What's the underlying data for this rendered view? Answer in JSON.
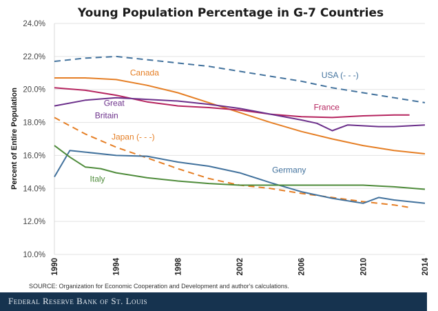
{
  "chart_data": {
    "type": "line",
    "title": "Young Population Percentage in G-7 Countries",
    "xlabel": "",
    "ylabel": "Percent of Entire Population",
    "xlim": [
      1990,
      2014
    ],
    "ylim": [
      10,
      24
    ],
    "x_ticks": [
      "1990",
      "1994",
      "1998",
      "2002",
      "2006",
      "2010",
      "2014"
    ],
    "x_tick_values": [
      1990,
      1994,
      1998,
      2002,
      2006,
      2010,
      2014
    ],
    "y_ticks": [
      "10.0%",
      "12.0%",
      "14.0%",
      "16.0%",
      "18.0%",
      "20.0%",
      "22.0%",
      "24.0%"
    ],
    "y_tick_values": [
      10,
      12,
      14,
      16,
      18,
      20,
      22,
      24
    ],
    "grid": true,
    "legend": "inline annotations",
    "series": [
      {
        "name": "USA",
        "label": "USA (- - -)",
        "color": "#41719c",
        "dashed": true,
        "x": [
          1990,
          1992,
          1994,
          1996,
          1998,
          2000,
          2002,
          2004,
          2006,
          2008,
          2010,
          2012,
          2014
        ],
        "y": [
          21.7,
          21.9,
          22.0,
          21.8,
          21.6,
          21.4,
          21.1,
          20.8,
          20.5,
          20.1,
          19.8,
          19.5,
          19.2
        ],
        "label_pos": {
          "x": 2007.3,
          "y": 20.7
        }
      },
      {
        "name": "Canada",
        "label": "Canada",
        "color": "#e57e24",
        "dashed": false,
        "x": [
          1990,
          1992,
          1994,
          1996,
          1998,
          2000,
          2002,
          2004,
          2006,
          2008,
          2010,
          2012,
          2014
        ],
        "y": [
          20.7,
          20.7,
          20.6,
          20.25,
          19.8,
          19.2,
          18.6,
          18.0,
          17.45,
          17.0,
          16.6,
          16.3,
          16.1
        ],
        "label_pos": {
          "x": 1994.9,
          "y": 20.85
        }
      },
      {
        "name": "France",
        "label": "France",
        "color": "#b5235e",
        "dashed": false,
        "x": [
          1990,
          1992,
          1994,
          1996,
          1998,
          2000,
          2002,
          2004,
          2006,
          2008,
          2010,
          2012,
          2013
        ],
        "y": [
          20.1,
          19.95,
          19.65,
          19.25,
          19.0,
          18.9,
          18.75,
          18.5,
          18.35,
          18.3,
          18.4,
          18.45,
          18.45
        ],
        "label_pos": {
          "x": 2006.8,
          "y": 18.75
        }
      },
      {
        "name": "Great Britain",
        "label": "Great Britain",
        "color": "#6b2f8a",
        "dashed": false,
        "x": [
          1990,
          1992,
          1994,
          1996,
          1998,
          2000,
          2002,
          2004,
          2006,
          2007,
          2008,
          2009,
          2011,
          2012,
          2014
        ],
        "y": [
          19.0,
          19.35,
          19.5,
          19.4,
          19.3,
          19.1,
          18.85,
          18.5,
          18.15,
          17.95,
          17.5,
          17.85,
          17.75,
          17.75,
          17.85
        ],
        "label_pos": {
          "x": 1993.2,
          "y": 19.0
        }
      },
      {
        "name": "Japan",
        "label": "Japan (- - -)",
        "color": "#e57e24",
        "dashed": true,
        "x": [
          1990,
          1992,
          1994,
          1996,
          1998,
          2000,
          2002,
          2004,
          2006,
          2008,
          2010,
          2012,
          2013
        ],
        "y": [
          18.3,
          17.3,
          16.5,
          15.85,
          15.2,
          14.6,
          14.2,
          14.0,
          13.7,
          13.45,
          13.2,
          13.0,
          12.85
        ],
        "label_pos": {
          "x": 1993.7,
          "y": 16.95
        }
      },
      {
        "name": "Germany",
        "label": "Germany",
        "color": "#41719c",
        "dashed": false,
        "x": [
          1990,
          1991,
          1992,
          1994,
          1996,
          1998,
          2000,
          2002,
          2004,
          2006,
          2008,
          2010,
          2011,
          2012,
          2014
        ],
        "y": [
          14.7,
          16.3,
          16.2,
          16.0,
          15.95,
          15.6,
          15.35,
          14.95,
          14.35,
          13.8,
          13.4,
          13.1,
          13.45,
          13.3,
          13.1
        ],
        "label_pos": {
          "x": 2004.1,
          "y": 14.95
        }
      },
      {
        "name": "Italy",
        "label": "Italy",
        "color": "#4e8b3a",
        "dashed": false,
        "x": [
          1990,
          1991,
          1992,
          1993,
          1994,
          1996,
          1998,
          2000,
          2002,
          2004,
          2006,
          2008,
          2010,
          2011,
          2012,
          2014
        ],
        "y": [
          16.6,
          15.9,
          15.3,
          15.2,
          14.95,
          14.65,
          14.45,
          14.3,
          14.2,
          14.2,
          14.2,
          14.2,
          14.2,
          14.15,
          14.1,
          13.95
        ],
        "label_pos": {
          "x": 1992.3,
          "y": 14.4
        }
      }
    ],
    "source_note": "SOURCE: Organization for Economic Cooperation and Development and author's calculations."
  },
  "footer": {
    "text": "Federal Reserve Bank of St. Louis"
  }
}
